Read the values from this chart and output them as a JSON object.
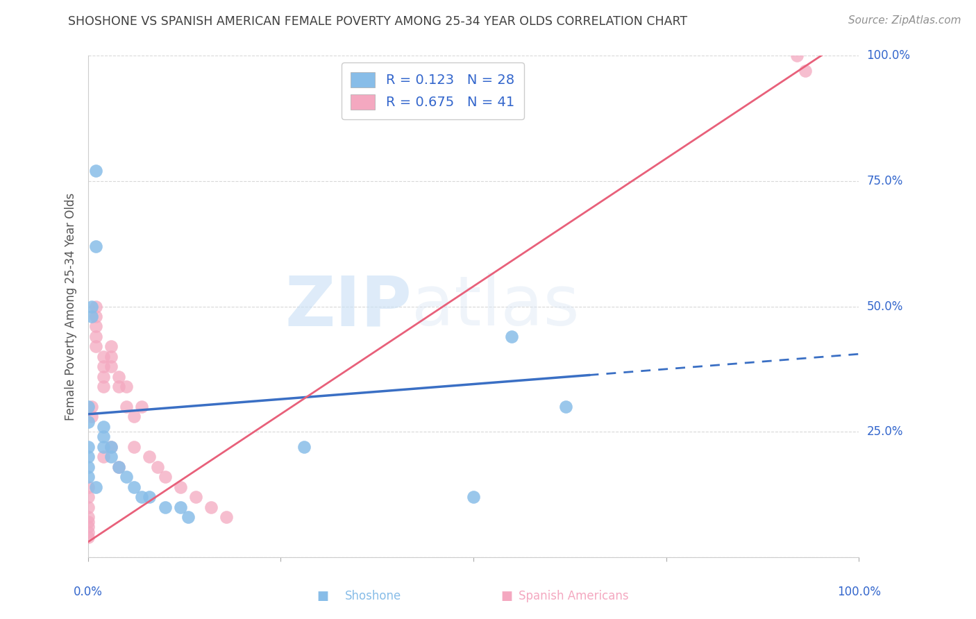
{
  "title": "SHOSHONE VS SPANISH AMERICAN FEMALE POVERTY AMONG 25-34 YEAR OLDS CORRELATION CHART",
  "source": "Source: ZipAtlas.com",
  "ylabel": "Female Poverty Among 25-34 Year Olds",
  "watermark_zip": "ZIP",
  "watermark_atlas": "atlas",
  "xlim": [
    0.0,
    1.0
  ],
  "ylim": [
    0.0,
    1.0
  ],
  "yticks": [
    0.0,
    0.25,
    0.5,
    0.75,
    1.0
  ],
  "ytick_labels": [
    "",
    "25.0%",
    "50.0%",
    "75.0%",
    "100.0%"
  ],
  "shoshone_R": "0.123",
  "shoshone_N": "28",
  "spanish_R": "0.675",
  "spanish_N": "41",
  "shoshone_color": "#88bde8",
  "spanish_color": "#f4a8c0",
  "shoshone_line_color": "#3a6fc4",
  "spanish_line_color": "#e8607a",
  "background_color": "#ffffff",
  "grid_color": "#d8d8d8",
  "legend_text_color": "#3366cc",
  "title_color": "#404040",
  "source_color": "#909090",
  "ylabel_color": "#555555",
  "shoshone_x": [
    0.01,
    0.01,
    0.005,
    0.005,
    0.0,
    0.0,
    0.0,
    0.0,
    0.0,
    0.0,
    0.01,
    0.02,
    0.02,
    0.02,
    0.03,
    0.03,
    0.04,
    0.05,
    0.06,
    0.07,
    0.08,
    0.1,
    0.12,
    0.13,
    0.28,
    0.55,
    0.62,
    0.5
  ],
  "shoshone_y": [
    0.77,
    0.62,
    0.5,
    0.48,
    0.3,
    0.27,
    0.22,
    0.2,
    0.18,
    0.16,
    0.14,
    0.26,
    0.24,
    0.22,
    0.22,
    0.2,
    0.18,
    0.16,
    0.14,
    0.12,
    0.12,
    0.1,
    0.1,
    0.08,
    0.22,
    0.44,
    0.3,
    0.12
  ],
  "spanish_x": [
    0.0,
    0.0,
    0.0,
    0.0,
    0.0,
    0.0,
    0.0,
    0.0,
    0.005,
    0.005,
    0.01,
    0.01,
    0.01,
    0.01,
    0.01,
    0.02,
    0.02,
    0.02,
    0.02,
    0.02,
    0.03,
    0.03,
    0.03,
    0.03,
    0.04,
    0.04,
    0.04,
    0.05,
    0.05,
    0.06,
    0.06,
    0.07,
    0.08,
    0.09,
    0.1,
    0.12,
    0.14,
    0.16,
    0.18,
    0.92,
    0.93
  ],
  "spanish_y": [
    0.14,
    0.12,
    0.1,
    0.08,
    0.07,
    0.06,
    0.05,
    0.04,
    0.3,
    0.28,
    0.5,
    0.48,
    0.46,
    0.44,
    0.42,
    0.4,
    0.38,
    0.36,
    0.34,
    0.2,
    0.42,
    0.4,
    0.38,
    0.22,
    0.36,
    0.34,
    0.18,
    0.34,
    0.3,
    0.28,
    0.22,
    0.3,
    0.2,
    0.18,
    0.16,
    0.14,
    0.12,
    0.1,
    0.08,
    1.0,
    0.97
  ],
  "title_fontsize": 12.5,
  "source_fontsize": 11,
  "label_fontsize": 12,
  "legend_fontsize": 14,
  "tick_fontsize": 12,
  "marker_size": 180,
  "shoshone_line_intercept": 0.285,
  "shoshone_line_slope": 0.12,
  "shoshone_line_solid_end": 0.65,
  "shoshone_line_dashed_end": 1.02,
  "spanish_line_intercept": 0.03,
  "spanish_line_slope": 1.02
}
